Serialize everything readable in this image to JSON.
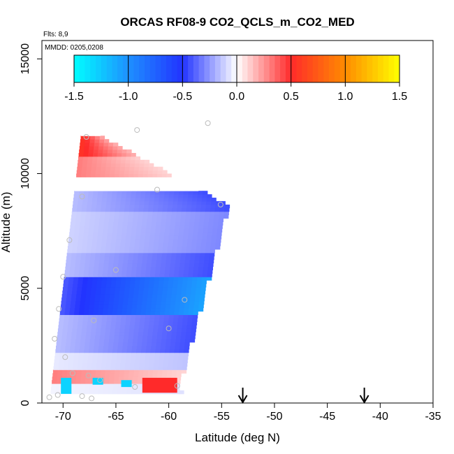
{
  "chart_data": {
    "type": "heatmap",
    "title": "ORCAS RF08-9 CO2_QCLS_m_CO2_MED",
    "flights_label": "Flts: 8,9",
    "mmdd_label": "MMDD: 0205,0208",
    "xlabel": "Latitude (deg N)",
    "ylabel": "Altitude (m)",
    "xlim": [
      -72,
      -35
    ],
    "ylim": [
      0,
      15800
    ],
    "x_ticks": [
      -70,
      -65,
      -60,
      -55,
      -50,
      -45,
      -40,
      -35
    ],
    "x_tick_labels": [
      "-70",
      "-65",
      "-60",
      "-55",
      "-50",
      "-45",
      "-40",
      "-35"
    ],
    "y_ticks": [
      0,
      5000,
      10000,
      15000
    ],
    "y_tick_labels": [
      "0",
      "5000",
      "10000",
      "15000"
    ],
    "colorbar": {
      "range": [
        -1.5,
        1.5
      ],
      "ticks": [
        -1.5,
        -1.0,
        -0.5,
        0.0,
        0.5,
        1.0,
        1.5
      ],
      "tick_labels": [
        "-1.5",
        "-1.0",
        "-0.5",
        "0.0",
        "0.5",
        "1.0",
        "1.5"
      ],
      "colors": [
        "#00ffff",
        "#1e90ff",
        "#2233ff",
        "#ffffff",
        "#ff2a2a",
        "#ff8c00",
        "#ffff00"
      ]
    },
    "arrows_latitude": [
      -53,
      -41.5
    ],
    "field_curtain": {
      "lat_left_bottom": -71.2,
      "lat_left_top": -68.3,
      "lat_right_bottom": -59,
      "lat_right_top": -54.5,
      "alt_bottom": 400,
      "alt_top": 11700,
      "alt_right_top": 8600,
      "alt_right_bottom": 1000,
      "peak_alt": 8600
    },
    "field_bands": [
      {
        "alt": [
          11700,
          10800
        ],
        "value": 0.45
      },
      {
        "alt": [
          10800,
          9900
        ],
        "value": 0.25
      },
      {
        "alt": [
          9900,
          9300
        ],
        "value": 0.0
      },
      {
        "alt": [
          9300,
          8300
        ],
        "value": -0.3
      },
      {
        "alt": [
          8300,
          6500
        ],
        "value": -0.2
      },
      {
        "alt": [
          6500,
          5500
        ],
        "value": -0.3
      },
      {
        "alt": [
          5500,
          3800
        ],
        "value": -0.75
      },
      {
        "alt": [
          3800,
          2900
        ],
        "value": -0.3
      },
      {
        "alt": [
          2900,
          2200
        ],
        "value": -0.3
      },
      {
        "alt": [
          2200,
          1500
        ],
        "value": -0.1
      },
      {
        "alt": [
          1500,
          900
        ],
        "value": 0.25
      },
      {
        "alt": [
          900,
          400
        ],
        "value": -0.05
      }
    ],
    "low_level_patches": [
      {
        "lat": [
          -70.2,
          -69.2
        ],
        "alt": [
          400,
          1100
        ],
        "value": -1.3
      },
      {
        "lat": [
          -67.2,
          -66.2
        ],
        "alt": [
          800,
          1100
        ],
        "value": -1.3
      },
      {
        "lat": [
          -64.5,
          -63.5
        ],
        "alt": [
          700,
          1000
        ],
        "value": -1.3
      },
      {
        "lat": [
          -62.5,
          -59.2
        ],
        "alt": [
          450,
          1100
        ],
        "value": 0.5
      }
    ],
    "sample_points": [
      {
        "lat": -67.8,
        "alt": 11600
      },
      {
        "lat": -63,
        "alt": 11900
      },
      {
        "lat": -56.3,
        "alt": 12200
      },
      {
        "lat": -61.1,
        "alt": 9300
      },
      {
        "lat": -68.2,
        "alt": 9000
      },
      {
        "lat": -55.1,
        "alt": 8650
      },
      {
        "lat": -65,
        "alt": 5800
      },
      {
        "lat": -70,
        "alt": 5500
      },
      {
        "lat": -69.4,
        "alt": 7100
      },
      {
        "lat": -58.5,
        "alt": 4500
      },
      {
        "lat": -70.4,
        "alt": 4100
      },
      {
        "lat": -60,
        "alt": 3250
      },
      {
        "lat": -67.1,
        "alt": 3600
      },
      {
        "lat": -70.8,
        "alt": 2800
      },
      {
        "lat": -69.8,
        "alt": 2000
      },
      {
        "lat": -67.6,
        "alt": 1200
      },
      {
        "lat": -66.5,
        "alt": 1000
      },
      {
        "lat": -63.2,
        "alt": 700
      },
      {
        "lat": -59.2,
        "alt": 750
      },
      {
        "lat": -71.3,
        "alt": 250
      },
      {
        "lat": -67.3,
        "alt": 200
      },
      {
        "lat": -68.2,
        "alt": 300
      },
      {
        "lat": -70.5,
        "alt": 350
      },
      {
        "lat": -69.1,
        "alt": 1300
      }
    ]
  }
}
